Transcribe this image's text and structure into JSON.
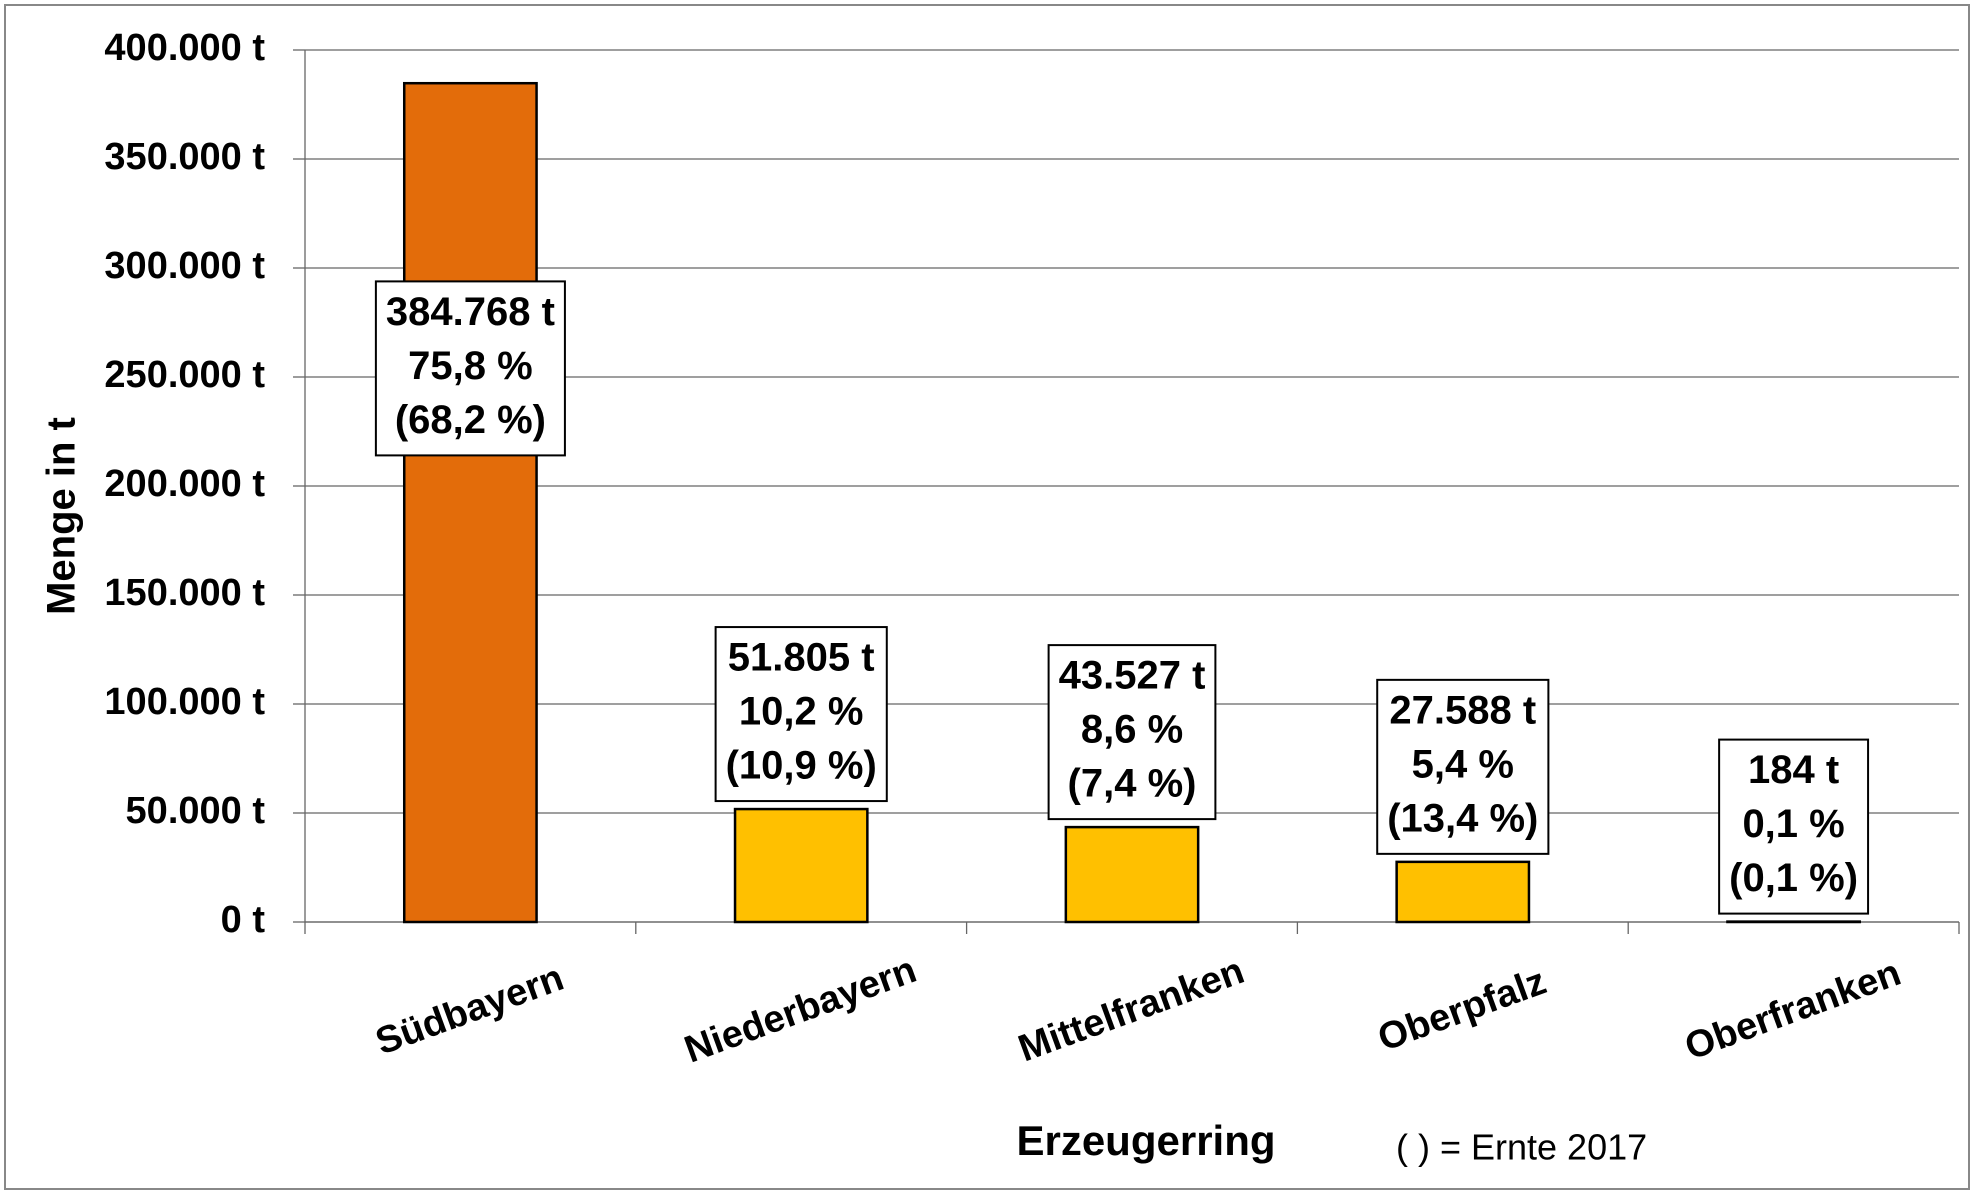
{
  "chart_data": {
    "type": "bar",
    "categories": [
      "Südbayern",
      "Niederbayern",
      "Mittelfranken",
      "Oberpfalz",
      "Oberfranken"
    ],
    "values": [
      384768,
      51805,
      43527,
      27588,
      184
    ],
    "value_labels": [
      "384.768 t",
      "51.805 t",
      "43.527 t",
      "27.588 t",
      "184 t"
    ],
    "share_labels": [
      "75,8 %",
      "10,2 %",
      "8,6 %",
      "5,4 %",
      "0,1 %"
    ],
    "share_2017_labels": [
      "(68,2 %)",
      "(10,9 %)",
      "(7,4 %)",
      "(13,4 %)",
      "(0,1 %)"
    ],
    "colors": [
      "#e36c0a",
      "#ffc000",
      "#ffc000",
      "#ffc000",
      "#ffc000"
    ],
    "xlabel": "Erzeugerring",
    "ylabel": "Menge in t",
    "annotation": "(   ) = Ernte 2017",
    "ylim": [
      0,
      400000
    ],
    "yticks": [
      {
        "value": 0,
        "label": "0 t"
      },
      {
        "value": 50000,
        "label": "50.000 t"
      },
      {
        "value": 100000,
        "label": "100.000 t"
      },
      {
        "value": 150000,
        "label": "150.000 t"
      },
      {
        "value": 200000,
        "label": "200.000 t"
      },
      {
        "value": 250000,
        "label": "250.000 t"
      },
      {
        "value": 300000,
        "label": "300.000 t"
      },
      {
        "value": 350000,
        "label": "350.000 t"
      },
      {
        "value": 400000,
        "label": "400.000 t"
      }
    ],
    "grid": true
  }
}
